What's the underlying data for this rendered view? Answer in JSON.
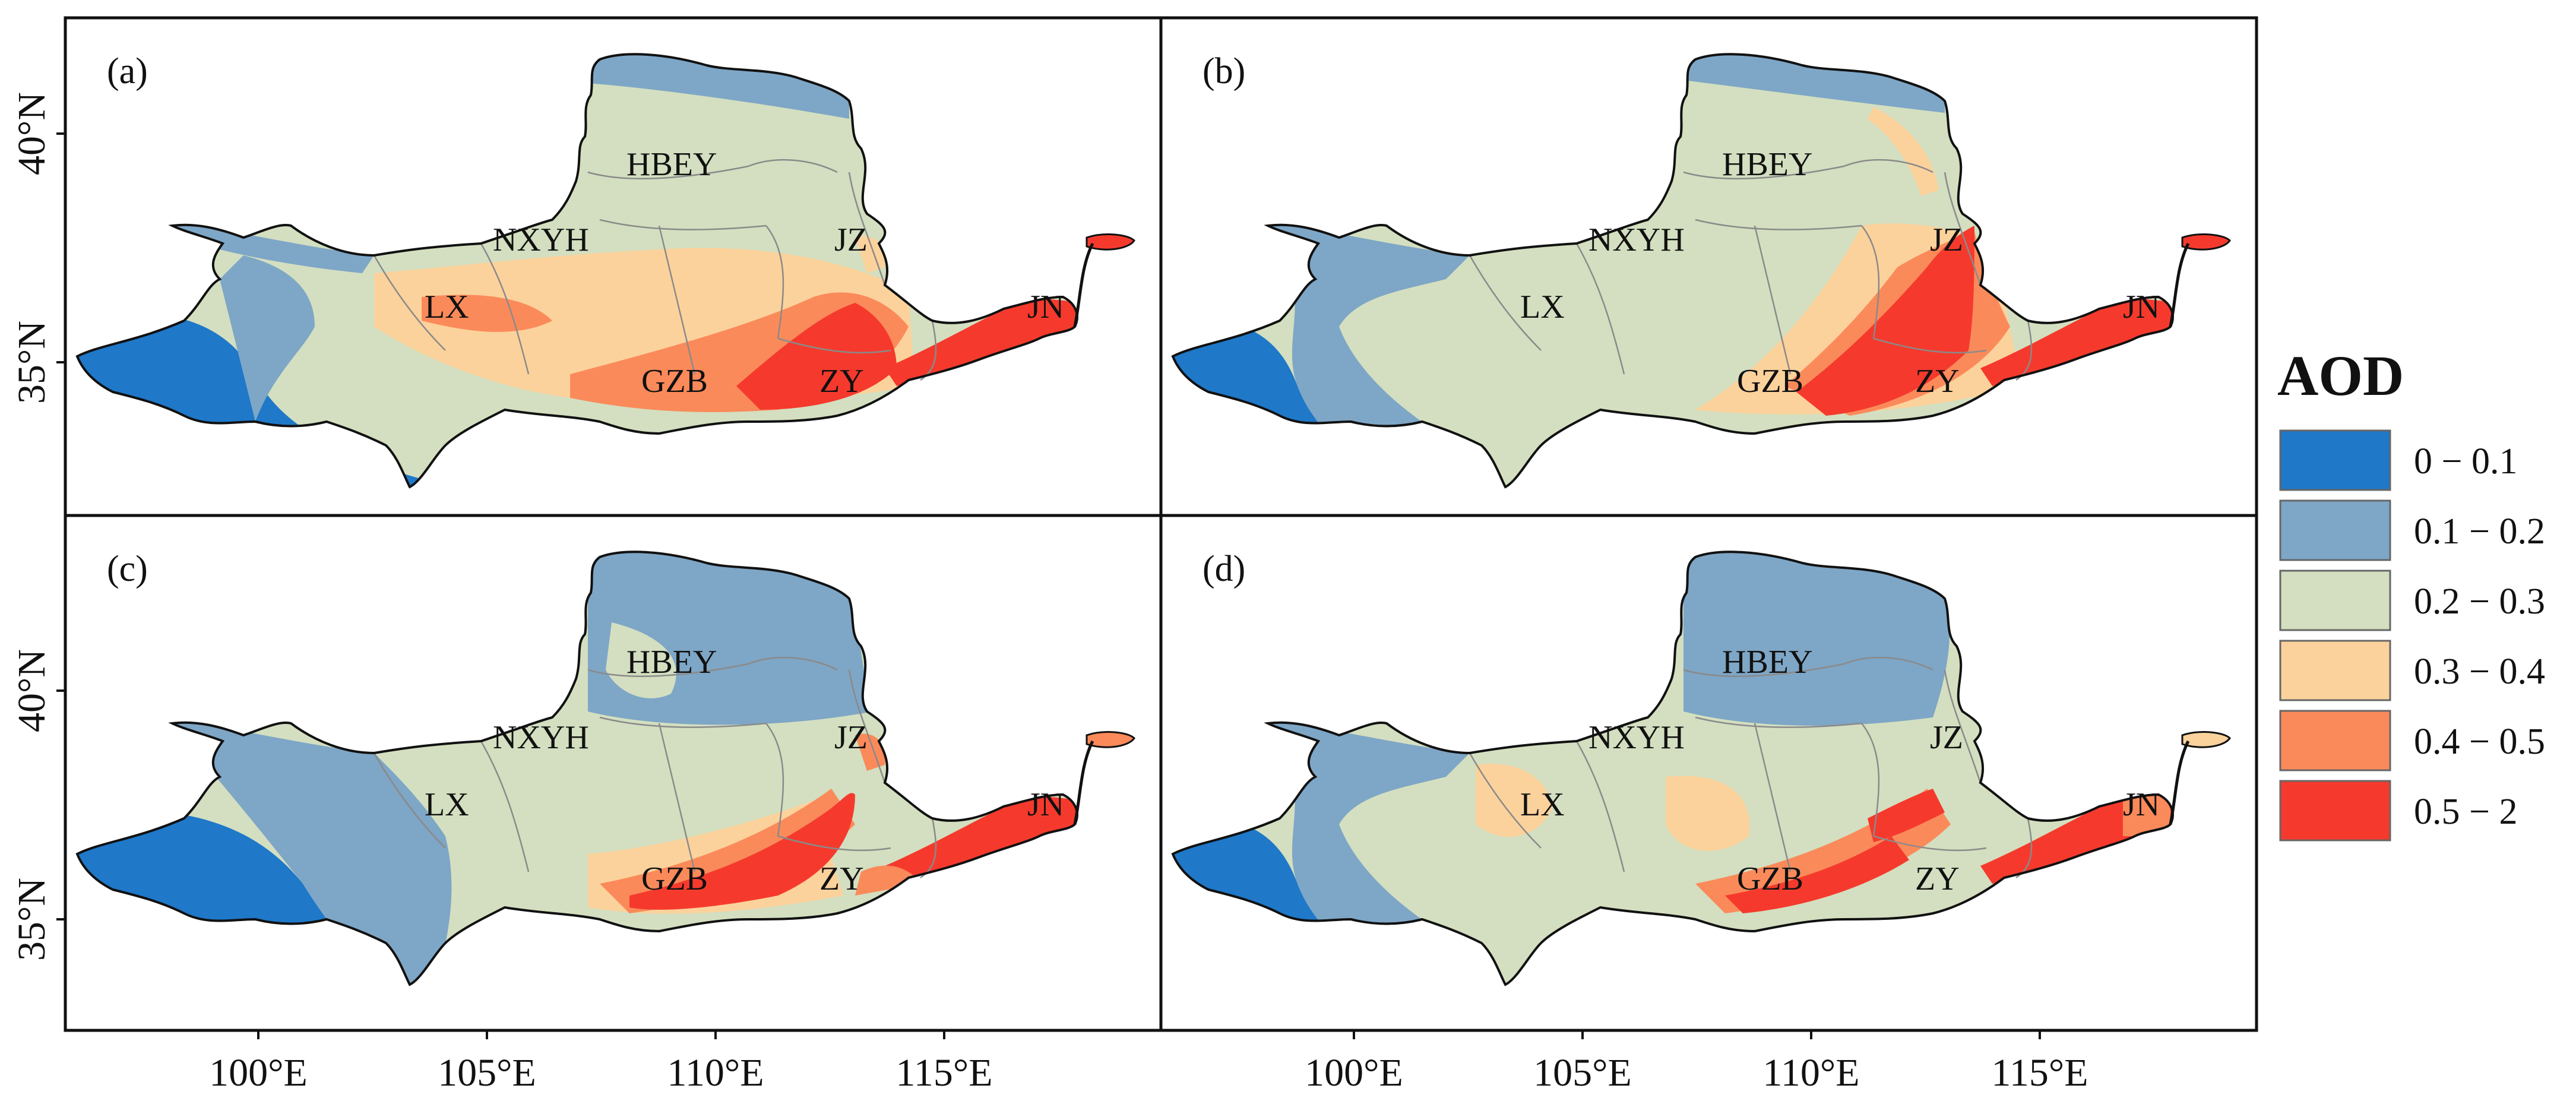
{
  "panels": [
    {
      "id": "a",
      "label": "(a)"
    },
    {
      "id": "b",
      "label": "(b)"
    },
    {
      "id": "c",
      "label": "(c)"
    },
    {
      "id": "d",
      "label": "(d)"
    }
  ],
  "region_labels": [
    "HBEY",
    "NXYH",
    "JZ",
    "LX",
    "GZB",
    "ZY",
    "JN"
  ],
  "axes": {
    "x_ticks": [
      "100°E",
      "105°E",
      "110°E",
      "115°E"
    ],
    "y_ticks": [
      "40°N",
      "35°N"
    ]
  },
  "legend": {
    "title": "AOD",
    "items": [
      {
        "range": "0 − 0.1",
        "color": "#1f78c8"
      },
      {
        "range": "0.1 − 0.2",
        "color": "#7ea6c6"
      },
      {
        "range": "0.2 − 0.3",
        "color": "#d3dfc0"
      },
      {
        "range": "0.3 − 0.4",
        "color": "#fcd29c"
      },
      {
        "range": "0.4 − 0.5",
        "color": "#fb8a5a"
      },
      {
        "range": "0.5 − 2",
        "color": "#f53a2d"
      }
    ]
  },
  "colors": {
    "outline": "#111111",
    "boundary": "#8a8a8a"
  }
}
